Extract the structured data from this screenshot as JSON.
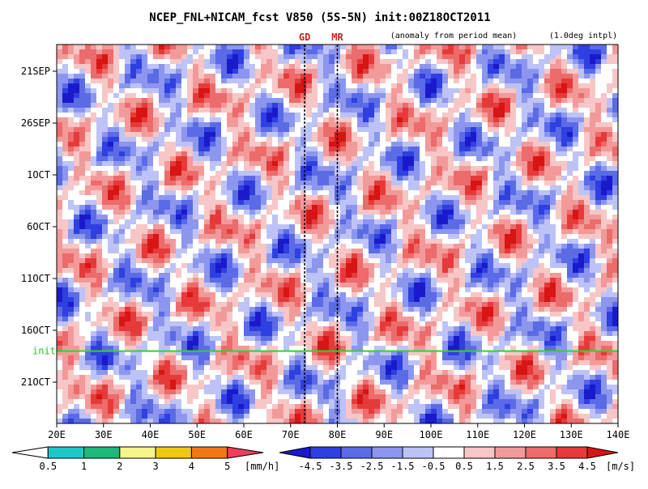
{
  "chart_data": {
    "type": "heatmap",
    "title": "NCEP_FNL+NICAM_fcst V850 (5S-5N) init:00Z18OCT2011",
    "subtitle_left": "(anomaly from period mean)",
    "subtitle_right": "(1.0deg intpl)",
    "x_ticks": [
      "20E",
      "30E",
      "40E",
      "50E",
      "60E",
      "70E",
      "80E",
      "90E",
      "100E",
      "110E",
      "120E",
      "130E",
      "140E"
    ],
    "x_range": [
      20,
      140
    ],
    "y_ticks": [
      "21SEP",
      "26SEP",
      "1OCT",
      "6OCT",
      "11OCT",
      "16OCT",
      "21OCT"
    ],
    "markers": [
      {
        "label": "GD",
        "lon": 73
      },
      {
        "label": "MR",
        "lon": 80
      }
    ],
    "init_label": "init",
    "init_date": "18OCT2011",
    "wind_colorbar": {
      "unit": "[m/s]",
      "labels": [
        "-4.5",
        "-3.5",
        "-2.5",
        "-1.5",
        "-0.5",
        "0.5",
        "1.5",
        "2.5",
        "3.5",
        "4.5"
      ],
      "colors": [
        "#1a1acc",
        "#2f3fe0",
        "#5b6be6",
        "#8c96ee",
        "#bdc3f6",
        "#ffffff",
        "#f7c6c6",
        "#f29a9a",
        "#ec6b6b",
        "#e63a3a",
        "#d81414"
      ]
    },
    "rain_colorbar": {
      "unit": "[mm/h]",
      "labels": [
        "0.5",
        "1",
        "2",
        "3",
        "4",
        "5"
      ],
      "colors": [
        "#ffffff",
        "#1ec8c8",
        "#1eb878",
        "#f5f58a",
        "#f0c814",
        "#f07814",
        "#f03c5a"
      ]
    }
  }
}
